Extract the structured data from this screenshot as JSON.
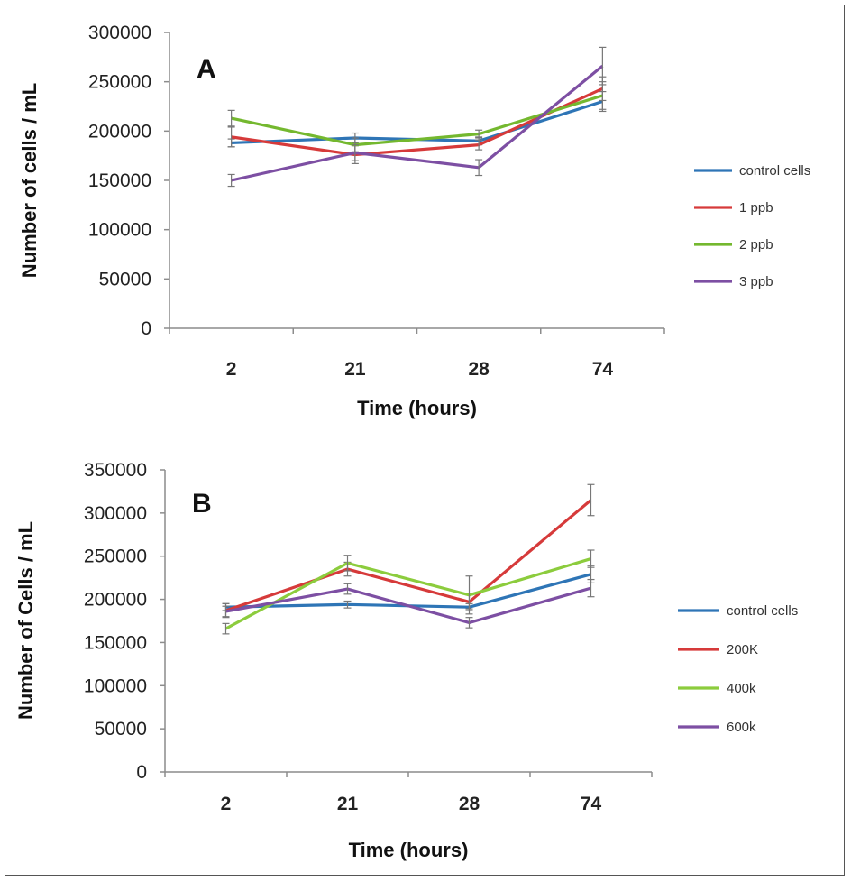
{
  "chart_data": [
    {
      "type": "line",
      "panel_label": "A",
      "title": "",
      "xlabel": "Time (hours)",
      "ylabel": "Number of cells / mL",
      "categories": [
        "2",
        "21",
        "28",
        "74"
      ],
      "ylim": [
        0,
        300000
      ],
      "yticks": [
        "0",
        "50000",
        "100000",
        "150000",
        "200000",
        "250000",
        "300000"
      ],
      "legend_position": "right",
      "series": [
        {
          "name": "control cells",
          "color": "#2e75b6",
          "values": [
            188000,
            193000,
            190000,
            230000
          ],
          "errors": [
            4000,
            5000,
            4000,
            10000
          ]
        },
        {
          "name": "1 ppb",
          "color": "#d63a3a",
          "values": [
            194000,
            176000,
            186000,
            243000
          ],
          "errors": [
            10000,
            9000,
            5000,
            12000
          ]
        },
        {
          "name": "2 ppb",
          "color": "#74b82f",
          "values": [
            213000,
            186000,
            197000,
            236000
          ],
          "errors": [
            8000,
            7000,
            4000,
            14000
          ]
        },
        {
          "name": "3 ppb",
          "color": "#7d4fa3",
          "values": [
            150000,
            178000,
            163000,
            266000
          ],
          "errors": [
            6000,
            8000,
            8000,
            19000
          ]
        }
      ]
    },
    {
      "type": "line",
      "panel_label": "B",
      "title": "",
      "xlabel": "Time (hours)",
      "ylabel": "Number of Cells / mL",
      "categories": [
        "2",
        "21",
        "28",
        "74"
      ],
      "ylim": [
        0,
        350000
      ],
      "yticks": [
        "0",
        "50000",
        "100000",
        "150000",
        "200000",
        "250000",
        "300000",
        "350000"
      ],
      "legend_position": "right",
      "series": [
        {
          "name": "control cells",
          "color": "#2e75b6",
          "values": [
            191000,
            194000,
            191000,
            229000
          ],
          "errors": [
            4000,
            4000,
            4000,
            10000
          ]
        },
        {
          "name": "200K",
          "color": "#d63a3a",
          "values": [
            187000,
            235000,
            197000,
            315000
          ],
          "errors": [
            8000,
            8000,
            8000,
            18000
          ]
        },
        {
          "name": "400k",
          "color": "#8ccc3d",
          "values": [
            166000,
            242000,
            205000,
            247000
          ],
          "errors": [
            6000,
            9000,
            22000,
            10000
          ]
        },
        {
          "name": "600k",
          "color": "#7d4fa3",
          "values": [
            186000,
            212000,
            173000,
            213000
          ],
          "errors": [
            6000,
            6000,
            6000,
            10000
          ]
        }
      ]
    }
  ]
}
